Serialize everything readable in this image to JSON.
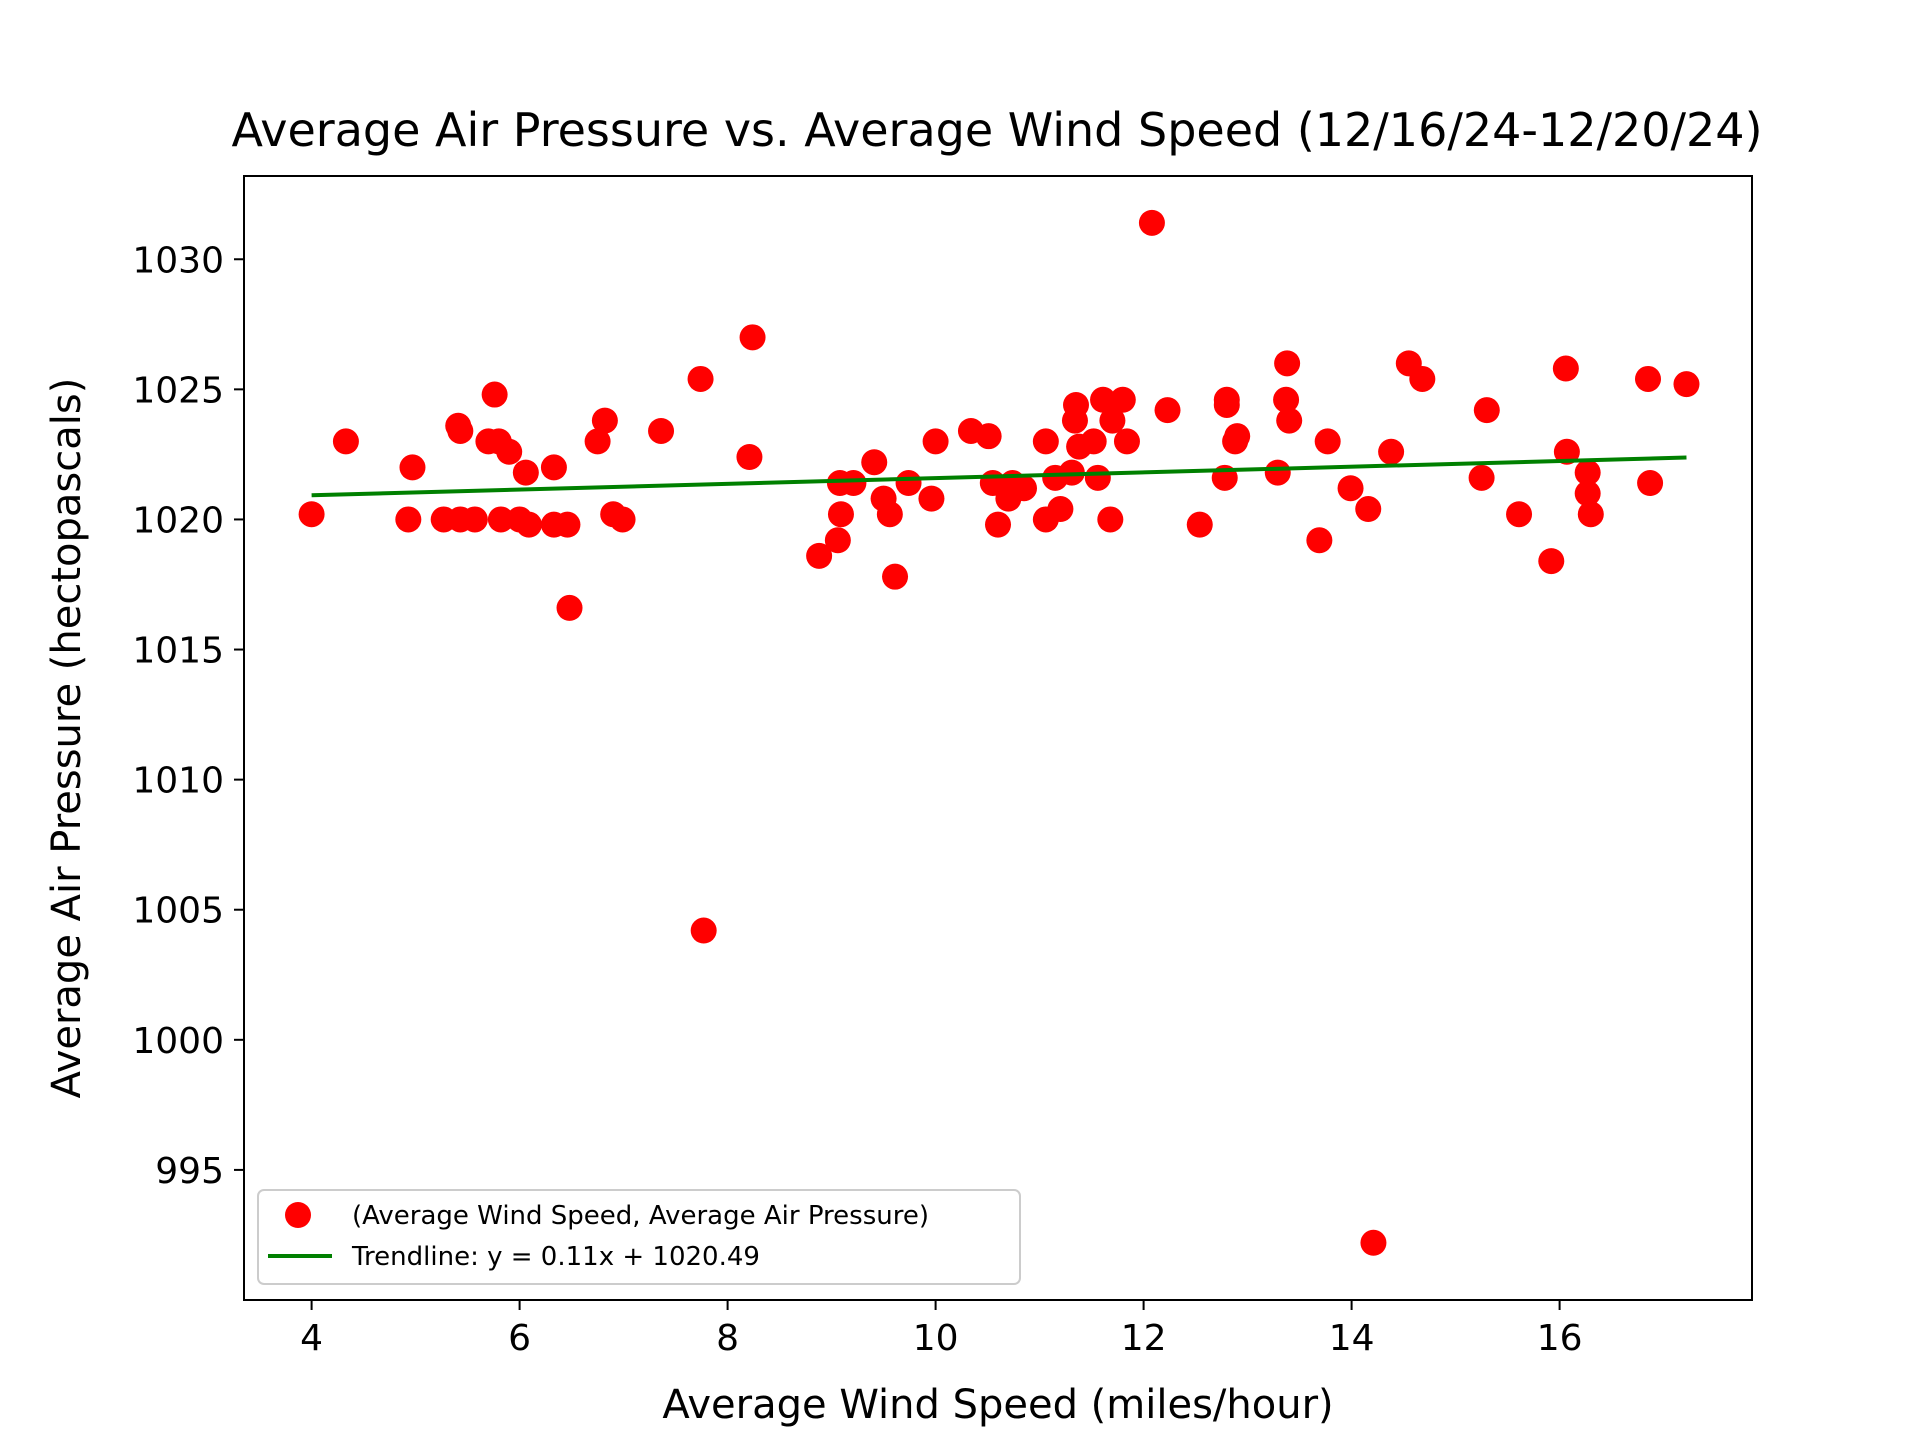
{
  "chart_data": {
    "type": "scatter",
    "title": "Average Air Pressure vs. Average Wind Speed (12/16/24-12/20/24)",
    "xlabel": "Average Wind Speed (miles/hour)",
    "ylabel": "Average Air Pressure (hectopascals)",
    "xlim": [
      3.35,
      17.85
    ],
    "ylim": [
      990.0,
      1033.2
    ],
    "xticks": [
      4,
      6,
      8,
      10,
      12,
      14,
      16
    ],
    "yticks": [
      995,
      1000,
      1005,
      1010,
      1015,
      1020,
      1025,
      1030
    ],
    "grid": false,
    "legend_position": "lower-left",
    "colors": {
      "points": "#ff0000",
      "trendline": "#008000"
    },
    "series": [
      {
        "name": "(Average Wind Speed, Average Air Pressure)",
        "type": "scatter",
        "points": [
          [
            4.0,
            1020.2
          ],
          [
            4.33,
            1023.0
          ],
          [
            4.93,
            1020.0
          ],
          [
            4.97,
            1022.0
          ],
          [
            5.27,
            1020.0
          ],
          [
            5.43,
            1020.0
          ],
          [
            5.41,
            1023.6
          ],
          [
            5.43,
            1023.4
          ],
          [
            5.57,
            1020.0
          ],
          [
            5.7,
            1023.0
          ],
          [
            5.76,
            1024.8
          ],
          [
            5.8,
            1023.0
          ],
          [
            5.82,
            1020.0
          ],
          [
            5.9,
            1022.6
          ],
          [
            6.0,
            1020.0
          ],
          [
            6.06,
            1021.8
          ],
          [
            6.09,
            1019.8
          ],
          [
            6.33,
            1022.0
          ],
          [
            6.33,
            1019.8
          ],
          [
            6.46,
            1019.8
          ],
          [
            6.48,
            1016.6
          ],
          [
            6.75,
            1023.0
          ],
          [
            6.82,
            1023.8
          ],
          [
            6.9,
            1020.2
          ],
          [
            6.99,
            1020.0
          ],
          [
            7.36,
            1023.4
          ],
          [
            7.74,
            1025.4
          ],
          [
            7.77,
            1004.2
          ],
          [
            8.21,
            1022.4
          ],
          [
            8.24,
            1027.0
          ],
          [
            8.88,
            1018.6
          ],
          [
            9.06,
            1019.2
          ],
          [
            9.08,
            1021.4
          ],
          [
            9.09,
            1020.2
          ],
          [
            9.21,
            1021.4
          ],
          [
            9.41,
            1022.2
          ],
          [
            9.5,
            1020.8
          ],
          [
            9.56,
            1020.2
          ],
          [
            9.61,
            1017.8
          ],
          [
            9.74,
            1021.4
          ],
          [
            9.96,
            1020.8
          ],
          [
            10.0,
            1023.0
          ],
          [
            10.34,
            1023.4
          ],
          [
            10.51,
            1023.2
          ],
          [
            10.55,
            1021.4
          ],
          [
            10.6,
            1019.8
          ],
          [
            10.7,
            1020.8
          ],
          [
            10.74,
            1021.4
          ],
          [
            10.85,
            1021.2
          ],
          [
            11.06,
            1023.0
          ],
          [
            11.06,
            1020.0
          ],
          [
            11.15,
            1021.6
          ],
          [
            11.2,
            1020.4
          ],
          [
            11.31,
            1021.8
          ],
          [
            11.34,
            1023.8
          ],
          [
            11.35,
            1024.4
          ],
          [
            11.38,
            1022.8
          ],
          [
            11.52,
            1023.0
          ],
          [
            11.56,
            1021.6
          ],
          [
            11.61,
            1024.6
          ],
          [
            11.68,
            1020.0
          ],
          [
            11.7,
            1023.8
          ],
          [
            11.8,
            1024.6
          ],
          [
            11.84,
            1023.0
          ],
          [
            12.08,
            1031.4
          ],
          [
            12.23,
            1024.2
          ],
          [
            12.54,
            1019.8
          ],
          [
            12.78,
            1021.6
          ],
          [
            12.8,
            1024.6
          ],
          [
            12.8,
            1024.4
          ],
          [
            12.88,
            1023.0
          ],
          [
            12.9,
            1023.2
          ],
          [
            13.29,
            1021.8
          ],
          [
            13.37,
            1024.6
          ],
          [
            13.38,
            1026.0
          ],
          [
            13.4,
            1023.8
          ],
          [
            13.69,
            1019.2
          ],
          [
            13.77,
            1023.0
          ],
          [
            13.99,
            1021.2
          ],
          [
            14.16,
            1020.4
          ],
          [
            14.21,
            992.2
          ],
          [
            14.38,
            1022.6
          ],
          [
            14.55,
            1026.0
          ],
          [
            14.68,
            1025.4
          ],
          [
            15.25,
            1021.6
          ],
          [
            15.3,
            1024.2
          ],
          [
            15.61,
            1020.2
          ],
          [
            15.92,
            1018.4
          ],
          [
            16.06,
            1025.8
          ],
          [
            16.07,
            1022.6
          ],
          [
            16.27,
            1021.8
          ],
          [
            16.27,
            1021.0
          ],
          [
            16.3,
            1020.2
          ],
          [
            16.85,
            1025.4
          ],
          [
            16.87,
            1021.4
          ],
          [
            17.22,
            1025.2
          ]
        ]
      },
      {
        "name": "Trendline: y = 0.11x + 1020.49",
        "type": "line",
        "points": [
          [
            4.0,
            1020.93
          ],
          [
            17.22,
            1022.38
          ]
        ]
      }
    ]
  }
}
